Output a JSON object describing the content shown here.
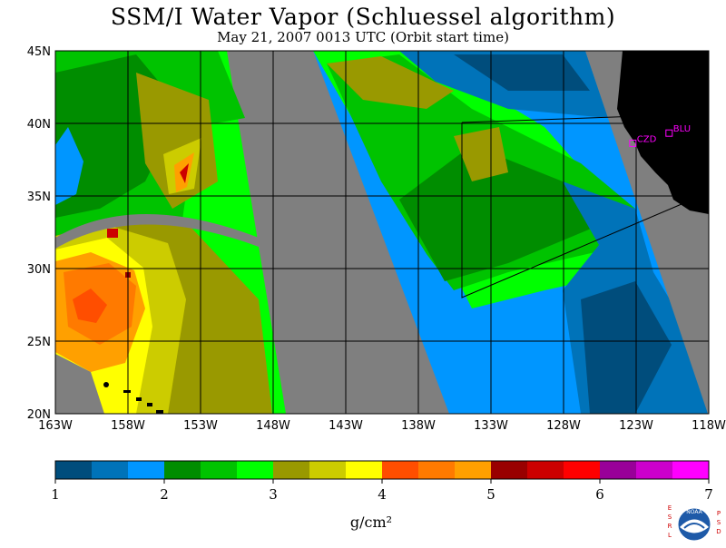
{
  "title": "SSM/I Water Vapor (Schluessel algorithm)",
  "subtitle": "May 21, 2007  0013 UTC  (Orbit start time)",
  "map": {
    "lat_labels": [
      "45N",
      "40N",
      "35N",
      "30N",
      "25N",
      "20N"
    ],
    "lon_labels": [
      "163W",
      "158W",
      "153W",
      "148W",
      "143W",
      "138W",
      "133W",
      "128W",
      "123W",
      "118W"
    ],
    "stations": [
      {
        "id": "CZD",
        "lat": 38.6,
        "lon": -123.2
      },
      {
        "id": "BLU",
        "lat": 39.3,
        "lon": -120.7
      }
    ],
    "colors": {
      "land": "#000000",
      "no_data": "#7f7f7f",
      "grid": "#000000",
      "station": "#ff00ff"
    }
  },
  "colorbar": {
    "tick_labels": [
      "1",
      "2",
      "3",
      "4",
      "5",
      "6",
      "7"
    ],
    "units": "g/cm²",
    "colors": [
      "#004d7c",
      "#0073b9",
      "#0096ff",
      "#008d00",
      "#00c300",
      "#00ff00",
      "#999900",
      "#cccc00",
      "#ffff00",
      "#ff4e00",
      "#ff7a00",
      "#ffa000",
      "#990000",
      "#cc0000",
      "#ff0000",
      "#990099",
      "#cc00cc",
      "#ff00ff"
    ]
  },
  "logo": {
    "left_text": "ESRL",
    "right_text": "PSD",
    "badge_text": "NOAA"
  }
}
